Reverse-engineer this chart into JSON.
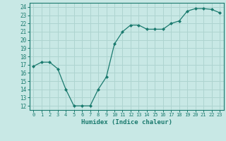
{
  "x": [
    0,
    1,
    2,
    3,
    4,
    5,
    6,
    7,
    8,
    9,
    10,
    11,
    12,
    13,
    14,
    15,
    16,
    17,
    18,
    19,
    20,
    21,
    22,
    23
  ],
  "y": [
    16.8,
    17.3,
    17.3,
    16.5,
    14.0,
    12.0,
    12.0,
    12.0,
    14.0,
    15.5,
    19.5,
    21.0,
    21.8,
    21.8,
    21.3,
    21.3,
    21.3,
    22.0,
    22.3,
    23.5,
    23.8,
    23.8,
    23.7,
    23.3
  ],
  "xlabel": "Humidex (Indice chaleur)",
  "xlim": [
    -0.5,
    23.5
  ],
  "ylim": [
    11.5,
    24.5
  ],
  "yticks": [
    12,
    13,
    14,
    15,
    16,
    17,
    18,
    19,
    20,
    21,
    22,
    23,
    24
  ],
  "xtick_labels": [
    "0",
    "1",
    "2",
    "3",
    "4",
    "5",
    "6",
    "7",
    "8",
    "9",
    "10",
    "11",
    "12",
    "13",
    "14",
    "15",
    "16",
    "17",
    "18",
    "19",
    "20",
    "21",
    "22",
    "23"
  ],
  "line_color": "#1a7a6e",
  "marker": "D",
  "marker_size": 2.0,
  "bg_color": "#c8e8e5",
  "grid_color": "#aed4d0",
  "tick_color": "#1a7a6e",
  "label_color": "#1a7a6e",
  "spine_color": "#1a7a6e"
}
